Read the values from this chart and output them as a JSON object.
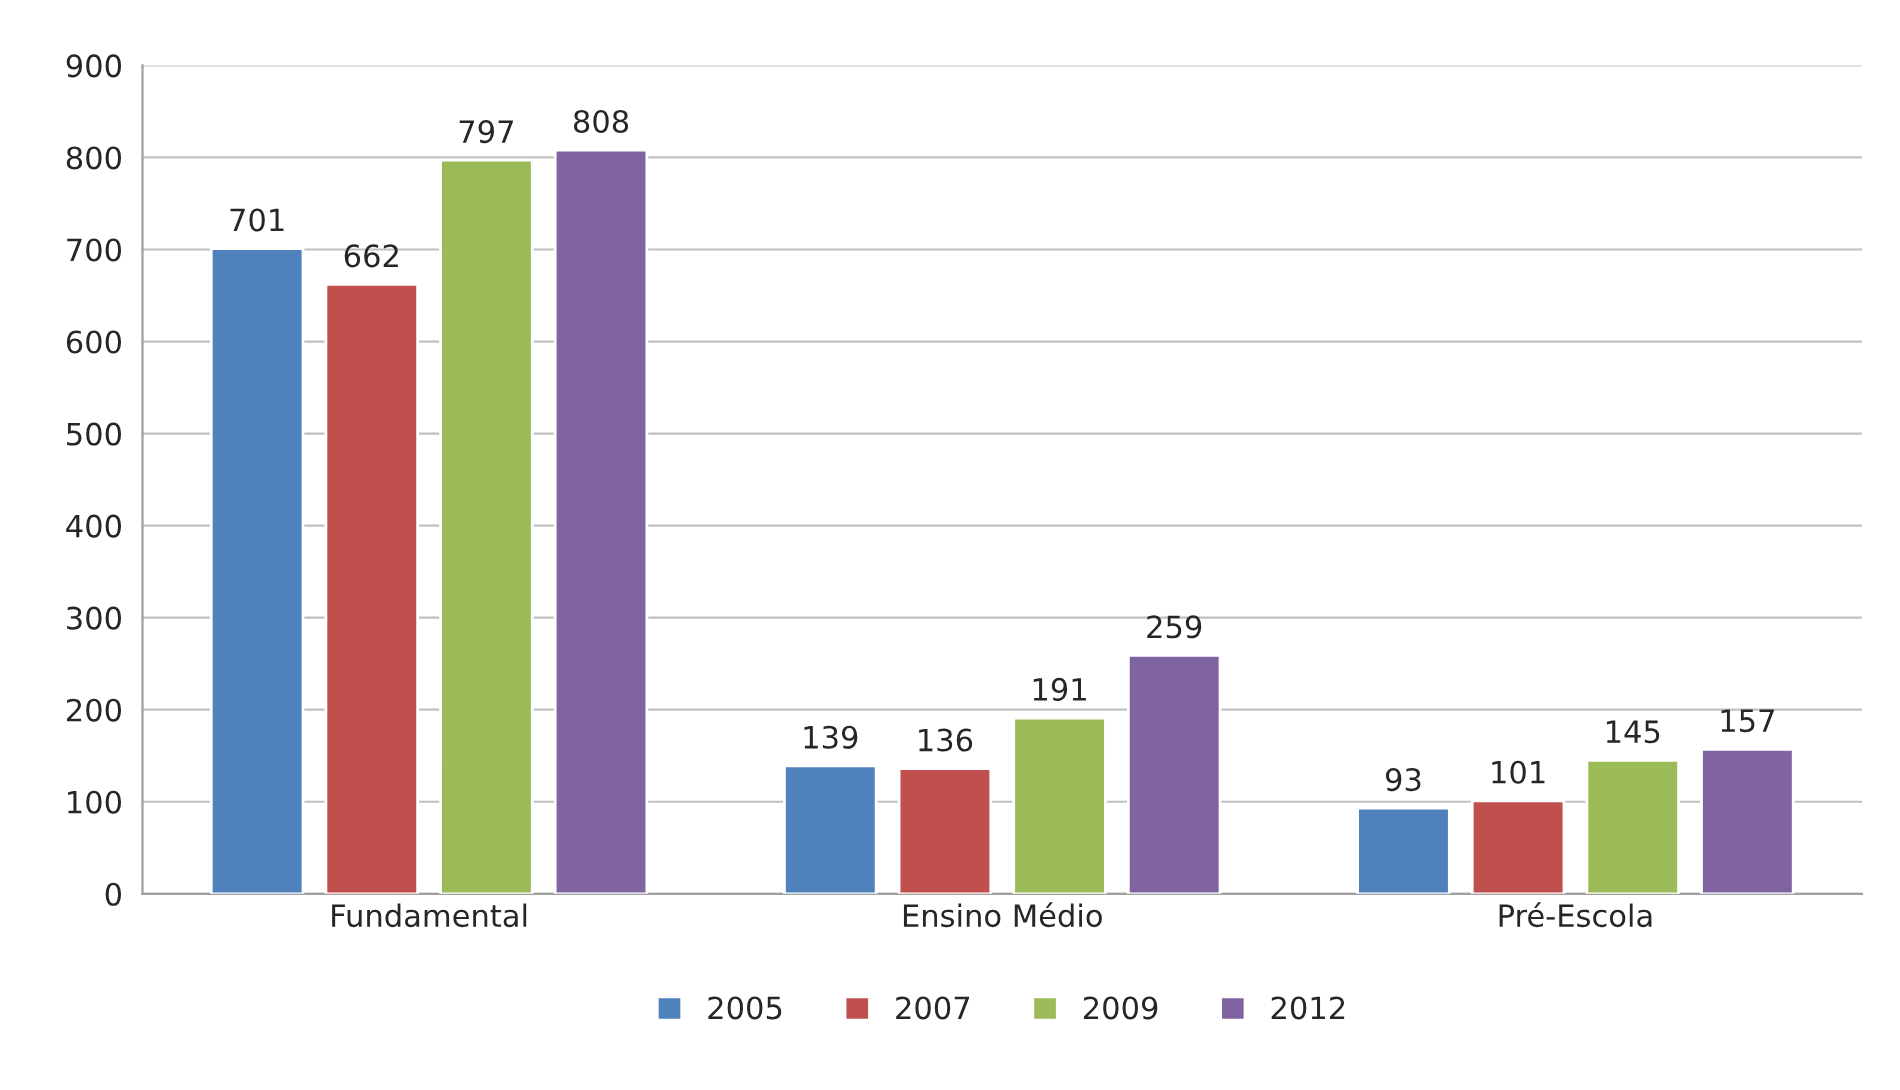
{
  "chart_data": {
    "type": "bar",
    "categories": [
      "Fundamental",
      "Ensino Médio",
      "Pré-Escola"
    ],
    "series": [
      {
        "name": "2005",
        "color": "#4f81bd",
        "values": [
          701,
          139,
          93
        ]
      },
      {
        "name": "2007",
        "color": "#c0504d",
        "values": [
          662,
          136,
          101
        ]
      },
      {
        "name": "2009",
        "color": "#9bbb59",
        "values": [
          797,
          191,
          145
        ]
      },
      {
        "name": "2012",
        "color": "#8064a2",
        "values": [
          808,
          259,
          157
        ]
      }
    ],
    "ylim": [
      0,
      900
    ],
    "yticks": [
      0,
      100,
      200,
      300,
      400,
      500,
      600,
      700,
      800,
      900
    ],
    "grid": "y",
    "legend": "bottom",
    "data_labels": true
  }
}
